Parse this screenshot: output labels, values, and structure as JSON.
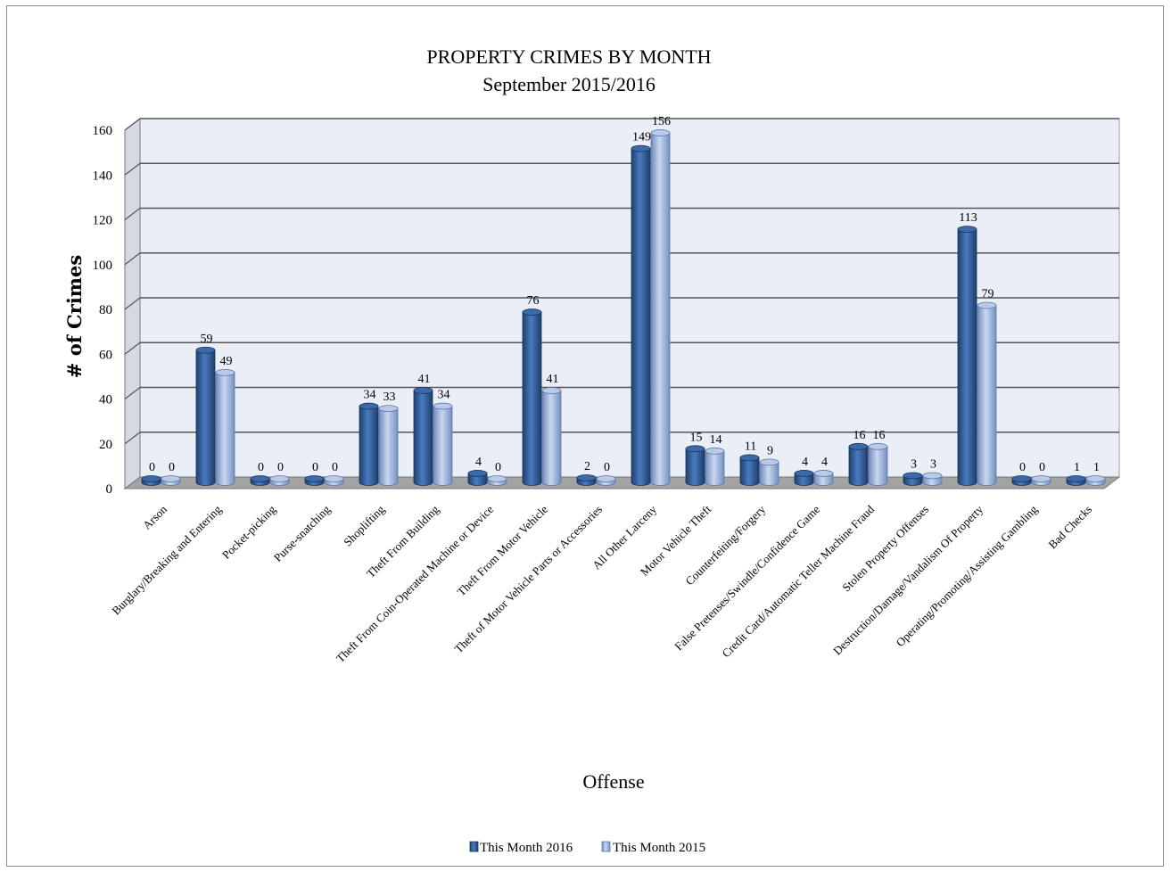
{
  "chart_data": {
    "type": "bar",
    "title": "PROPERTY CRIMES BY MONTH",
    "subtitle": "September 2015/2016",
    "xlabel": "Offense",
    "ylabel": "# of Crimes",
    "ylim": [
      0,
      160
    ],
    "yticks": [
      0,
      20,
      40,
      60,
      80,
      100,
      120,
      140,
      160
    ],
    "grid": true,
    "legend_position": "bottom",
    "categories": [
      "Arson",
      "Burglary/Breaking and Entering",
      "Pocket-picking",
      "Purse-snatching",
      "Shoplifting",
      "Theft From Building",
      "Theft From Coin-Operated Machine or Device",
      "Theft From Motor Vehicle",
      "Theft of Motor Vehicle Parts or Accessories",
      "All Other Larceny",
      "Motor Vehicle Theft",
      "Counterfeiting/Forgery",
      "False Pretenses/Swindle/Confidence Game",
      "Credit Card/Automatic Teller Machine Fraud",
      "Stolen Property Offenses",
      "Destruction/Damage/Vandalism Of Property",
      "Operating/Promoting/Assisting Gambling",
      "Bad Checks"
    ],
    "series": [
      {
        "name": "This Month 2016",
        "color": "#2f5d99",
        "values": [
          0,
          59,
          0,
          0,
          34,
          41,
          4,
          76,
          2,
          149,
          15,
          11,
          4,
          16,
          3,
          113,
          0,
          1
        ]
      },
      {
        "name": "This Month 2015",
        "color": "#9db4dc",
        "values": [
          0,
          49,
          0,
          0,
          33,
          34,
          0,
          41,
          0,
          156,
          14,
          9,
          4,
          16,
          3,
          79,
          0,
          1
        ]
      }
    ]
  }
}
